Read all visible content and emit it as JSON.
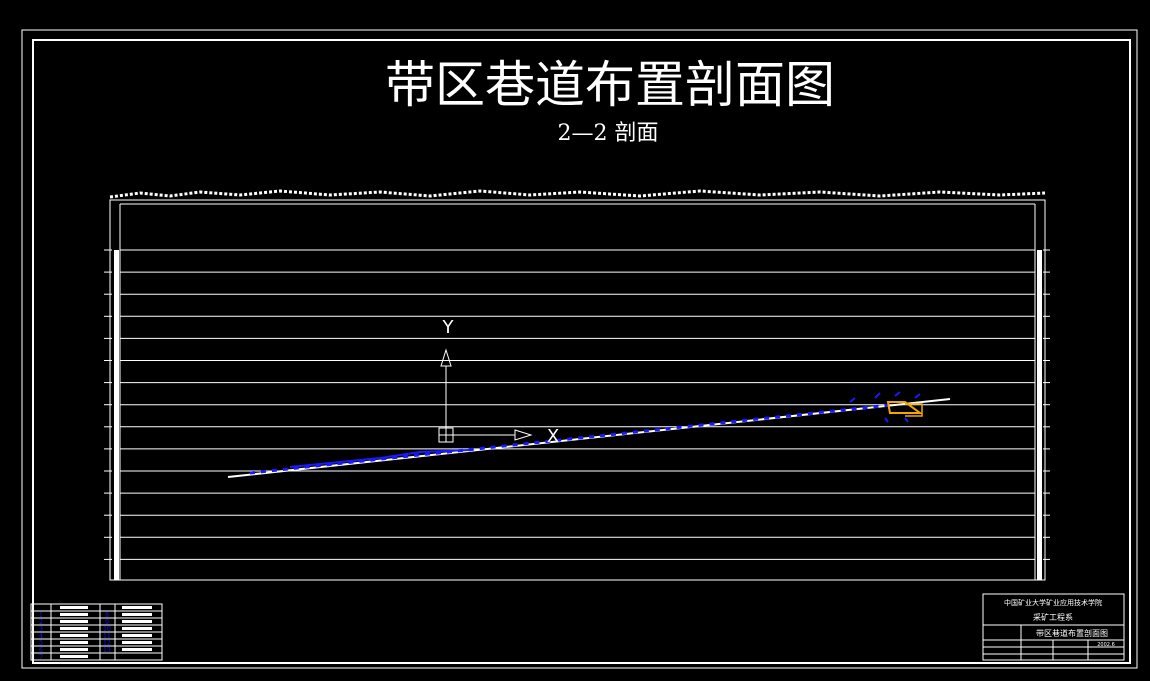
{
  "drawing": {
    "title": "带区巷道布置剖面图",
    "subtitle": "2—2 剖面",
    "ucs": {
      "x_label": "X",
      "y_label": "Y"
    },
    "colors": {
      "background": "#000000",
      "lines": "#ffffff",
      "roadways": "#1a1aff",
      "equipment": "#f0a800"
    }
  },
  "title_block": {
    "school": "中国矿业大学矿业应用技术学院",
    "department": "采矿工程系",
    "drawing_name": "带区巷道布置剖面图",
    "date": "2002.6"
  },
  "legend_table": {
    "numbers_left": [
      "1",
      "2",
      "3",
      "4",
      "5",
      "6",
      "7"
    ],
    "numbers_right": [
      "8",
      "9",
      "10",
      "11",
      "12",
      "13"
    ]
  }
}
